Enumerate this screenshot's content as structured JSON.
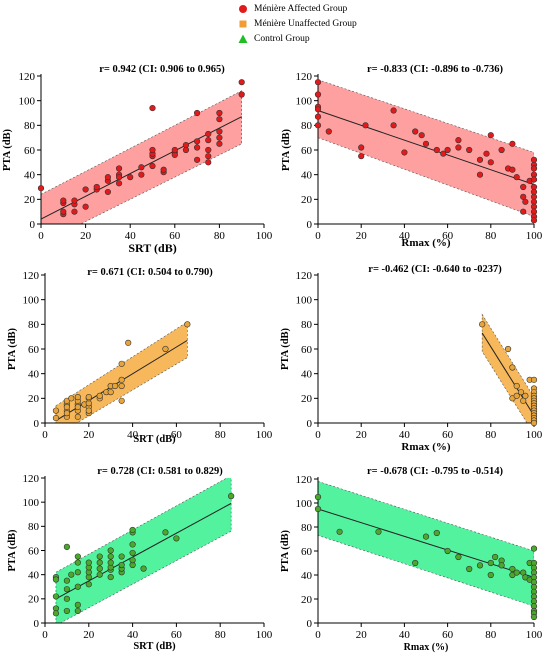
{
  "legend": {
    "items": [
      {
        "label": "Ménière Affected Group",
        "color": "#e31a1c",
        "shape": "circle-icon"
      },
      {
        "label": "Ménière Unaffected Group",
        "color": "#f39c34",
        "shape": "square-icon"
      },
      {
        "label": "Control Group",
        "color": "#1fbf24",
        "shape": "triangle-icon"
      }
    ]
  },
  "chart_data": [
    {
      "type": "scatter",
      "group": "Ménière Affected Group",
      "title": "r= 0.942 (CI: 0.906 to 0.965)",
      "xlabel": "SRT (dB)",
      "ylabel": "PTA (dB)",
      "xlim": [
        0,
        100
      ],
      "ylim": [
        0,
        120
      ],
      "xticks": [
        0,
        20,
        40,
        60,
        80,
        100
      ],
      "yticks": [
        0,
        20,
        40,
        60,
        80,
        100,
        120
      ],
      "point_color": "#e31a1c",
      "band_color": "#ff8f8f",
      "fit": {
        "x": [
          0,
          90
        ],
        "y": [
          4,
          87
        ]
      },
      "band": {
        "x": [
          0,
          90
        ],
        "upper": [
          24,
          108
        ],
        "lower": [
          -16,
          65
        ]
      },
      "points": [
        [
          0,
          29
        ],
        [
          10,
          8
        ],
        [
          10,
          10
        ],
        [
          10,
          17
        ],
        [
          10,
          19
        ],
        [
          15,
          10
        ],
        [
          15,
          16
        ],
        [
          15,
          19
        ],
        [
          20,
          28
        ],
        [
          20,
          14
        ],
        [
          25,
          28
        ],
        [
          25,
          30
        ],
        [
          30,
          35
        ],
        [
          30,
          38
        ],
        [
          30,
          26
        ],
        [
          35,
          40
        ],
        [
          35,
          45
        ],
        [
          35,
          33
        ],
        [
          35,
          38
        ],
        [
          40,
          38
        ],
        [
          45,
          40
        ],
        [
          45,
          46
        ],
        [
          50,
          47
        ],
        [
          50,
          55
        ],
        [
          50,
          57
        ],
        [
          50,
          60
        ],
        [
          50,
          94
        ],
        [
          55,
          42
        ],
        [
          55,
          44
        ],
        [
          60,
          58
        ],
        [
          60,
          56
        ],
        [
          60,
          60
        ],
        [
          65,
          60
        ],
        [
          65,
          64
        ],
        [
          70,
          52
        ],
        [
          70,
          62
        ],
        [
          70,
          67
        ],
        [
          70,
          90
        ],
        [
          75,
          55
        ],
        [
          75,
          60
        ],
        [
          75,
          68
        ],
        [
          75,
          73
        ],
        [
          75,
          50
        ],
        [
          80,
          65
        ],
        [
          80,
          70
        ],
        [
          80,
          75
        ],
        [
          80,
          85
        ],
        [
          80,
          90
        ],
        [
          90,
          105
        ],
        [
          90,
          115
        ]
      ]
    },
    {
      "type": "scatter",
      "group": "Ménière Affected Group",
      "title": "r= -0.833 (CI: -0.896 to -0.736)",
      "xlabel": "Rmax (%)",
      "ylabel": "PTA (dB)",
      "xlim": [
        0,
        100
      ],
      "ylim": [
        0,
        120
      ],
      "xticks": [
        0,
        20,
        40,
        60,
        80,
        100
      ],
      "yticks": [
        0,
        20,
        40,
        60,
        80,
        100,
        120
      ],
      "point_color": "#e31a1c",
      "band_color": "#ff8f8f",
      "fit": {
        "x": [
          0,
          100
        ],
        "y": [
          92,
          32
        ]
      },
      "band": {
        "x": [
          0,
          100
        ],
        "upper": [
          117,
          58
        ],
        "lower": [
          70,
          6
        ]
      },
      "points": [
        [
          0,
          115
        ],
        [
          0,
          105
        ],
        [
          0,
          95
        ],
        [
          0,
          87
        ],
        [
          0,
          80
        ],
        [
          0,
          93
        ],
        [
          5,
          75
        ],
        [
          20,
          55
        ],
        [
          20,
          62
        ],
        [
          22,
          80
        ],
        [
          35,
          92
        ],
        [
          35,
          80
        ],
        [
          40,
          58
        ],
        [
          45,
          75
        ],
        [
          48,
          72
        ],
        [
          50,
          65
        ],
        [
          55,
          60
        ],
        [
          58,
          57
        ],
        [
          60,
          60
        ],
        [
          65,
          62
        ],
        [
          65,
          68
        ],
        [
          70,
          60
        ],
        [
          75,
          52
        ],
        [
          75,
          40
        ],
        [
          78,
          57
        ],
        [
          80,
          50
        ],
        [
          80,
          72
        ],
        [
          85,
          60
        ],
        [
          88,
          45
        ],
        [
          90,
          44
        ],
        [
          90,
          65
        ],
        [
          92,
          38
        ],
        [
          95,
          30
        ],
        [
          95,
          10
        ],
        [
          95,
          22
        ],
        [
          96,
          18
        ],
        [
          98,
          35
        ],
        [
          100,
          48
        ],
        [
          100,
          52
        ],
        [
          100,
          45
        ],
        [
          100,
          40
        ],
        [
          100,
          36
        ],
        [
          100,
          30
        ],
        [
          100,
          26
        ],
        [
          100,
          22
        ],
        [
          100,
          18
        ],
        [
          100,
          14
        ],
        [
          100,
          10
        ],
        [
          100,
          6
        ],
        [
          100,
          3
        ]
      ]
    },
    {
      "type": "scatter",
      "group": "Ménière Unaffected Group",
      "title": "r= 0.671  (CI: 0.504 to 0.790)",
      "xlabel": "SRT (dB)",
      "ylabel": "PTA (dB)",
      "xlim": [
        0,
        100
      ],
      "ylim": [
        0,
        120
      ],
      "xticks": [
        0,
        20,
        40,
        60,
        80,
        100
      ],
      "yticks": [
        0,
        20,
        40,
        60,
        80,
        100,
        120
      ],
      "point_color": "#e7a43a",
      "band_color": "#f4ac3e",
      "fit": {
        "x": [
          5,
          65
        ],
        "y": [
          2,
          67
        ]
      },
      "band": {
        "x": [
          5,
          65
        ],
        "upper": [
          14,
          82
        ],
        "lower": [
          -10,
          53
        ]
      },
      "points": [
        [
          5,
          10
        ],
        [
          5,
          4
        ],
        [
          10,
          5
        ],
        [
          10,
          10
        ],
        [
          10,
          15
        ],
        [
          10,
          8
        ],
        [
          10,
          18
        ],
        [
          10,
          13
        ],
        [
          12,
          20
        ],
        [
          15,
          5
        ],
        [
          15,
          10
        ],
        [
          15,
          15
        ],
        [
          15,
          18
        ],
        [
          15,
          21
        ],
        [
          15,
          13
        ],
        [
          18,
          15
        ],
        [
          20,
          8
        ],
        [
          20,
          13
        ],
        [
          20,
          16
        ],
        [
          20,
          20
        ],
        [
          20,
          21
        ],
        [
          20,
          10
        ],
        [
          25,
          20
        ],
        [
          25,
          22
        ],
        [
          28,
          25
        ],
        [
          30,
          25
        ],
        [
          30,
          30
        ],
        [
          32,
          30
        ],
        [
          35,
          18
        ],
        [
          35,
          48
        ],
        [
          35,
          30
        ],
        [
          35,
          35
        ],
        [
          38,
          65
        ],
        [
          55,
          60
        ],
        [
          65,
          80
        ]
      ]
    },
    {
      "type": "scatter",
      "group": "Ménière Unaffected Group",
      "title": "r= -0.462 (CI: -0.640 to -0237)",
      "xlabel": "Rmax (%)",
      "ylabel": "PTA (dB)",
      "xlim": [
        0,
        100
      ],
      "ylim": [
        0,
        120
      ],
      "xticks": [
        0,
        20,
        40,
        60,
        80,
        100
      ],
      "yticks": [
        0,
        20,
        40,
        60,
        80,
        100,
        120
      ],
      "point_color": "#e7a43a",
      "band_color": "#f4ac3e",
      "fit": {
        "x": [
          76,
          100
        ],
        "y": [
          73,
          6
        ]
      },
      "band": {
        "x": [
          76,
          100
        ],
        "upper": [
          88,
          21
        ],
        "lower": [
          58,
          -9
        ]
      },
      "points": [
        [
          76,
          80
        ],
        [
          88,
          60
        ],
        [
          90,
          45
        ],
        [
          90,
          20
        ],
        [
          92,
          30
        ],
        [
          92,
          22
        ],
        [
          94,
          25
        ],
        [
          95,
          18
        ],
        [
          96,
          22
        ],
        [
          98,
          35
        ],
        [
          100,
          35
        ],
        [
          100,
          28
        ],
        [
          100,
          25
        ],
        [
          100,
          22
        ],
        [
          100,
          20
        ],
        [
          100,
          18
        ],
        [
          100,
          16
        ],
        [
          100,
          14
        ],
        [
          100,
          12
        ],
        [
          100,
          10
        ],
        [
          100,
          8
        ],
        [
          100,
          6
        ],
        [
          100,
          4
        ],
        [
          100,
          2
        ],
        [
          100,
          0
        ]
      ]
    },
    {
      "type": "scatter",
      "group": "Control Group",
      "title": "r= 0.728 (CI: 0.581 to 0.829)",
      "xlabel": "SRT (dB)",
      "ylabel": "PTA (dB)",
      "xlim": [
        0,
        100
      ],
      "ylim": [
        0,
        120
      ],
      "xticks": [
        0,
        20,
        40,
        60,
        80,
        100
      ],
      "yticks": [
        0,
        20,
        40,
        60,
        80,
        100,
        120
      ],
      "point_color": "#4aa82a",
      "band_color": "#35f08e",
      "fit": {
        "x": [
          5,
          85
        ],
        "y": [
          20,
          99
        ]
      },
      "band": {
        "x": [
          5,
          85
        ],
        "upper": [
          42,
          122
        ],
        "lower": [
          -2,
          76
        ]
      },
      "points": [
        [
          5,
          38
        ],
        [
          5,
          36
        ],
        [
          5,
          22
        ],
        [
          5,
          12
        ],
        [
          5,
          8
        ],
        [
          10,
          10
        ],
        [
          10,
          20
        ],
        [
          10,
          28
        ],
        [
          10,
          35
        ],
        [
          10,
          63
        ],
        [
          12,
          40
        ],
        [
          15,
          10
        ],
        [
          15,
          15
        ],
        [
          15,
          30
        ],
        [
          15,
          42
        ],
        [
          15,
          50
        ],
        [
          15,
          55
        ],
        [
          20,
          32
        ],
        [
          20,
          38
        ],
        [
          20,
          42
        ],
        [
          20,
          46
        ],
        [
          20,
          50
        ],
        [
          25,
          40
        ],
        [
          25,
          45
        ],
        [
          25,
          50
        ],
        [
          25,
          55
        ],
        [
          30,
          38
        ],
        [
          30,
          44
        ],
        [
          30,
          46
        ],
        [
          30,
          50
        ],
        [
          30,
          55
        ],
        [
          30,
          60
        ],
        [
          35,
          42
        ],
        [
          35,
          45
        ],
        [
          35,
          48
        ],
        [
          35,
          55
        ],
        [
          40,
          48
        ],
        [
          40,
          52
        ],
        [
          40,
          58
        ],
        [
          40,
          65
        ],
        [
          40,
          75
        ],
        [
          40,
          77
        ],
        [
          45,
          45
        ],
        [
          55,
          75
        ],
        [
          60,
          70
        ],
        [
          85,
          105
        ]
      ]
    },
    {
      "type": "scatter",
      "group": "Control Group",
      "title": "r= -0.678 (CI: -0.795 to -0.514)",
      "xlabel": "Rmax (%)",
      "ylabel": "PTA (dB)",
      "xlim": [
        0,
        100
      ],
      "ylim": [
        0,
        120
      ],
      "xticks": [
        0,
        20,
        40,
        60,
        80,
        100
      ],
      "yticks": [
        0,
        20,
        40,
        60,
        80,
        100,
        120
      ],
      "point_color": "#4aa82a",
      "band_color": "#35f08e",
      "fit": {
        "x": [
          0,
          100
        ],
        "y": [
          95,
          38
        ]
      },
      "band": {
        "x": [
          0,
          100
        ],
        "upper": [
          118,
          60
        ],
        "lower": [
          73,
          14
        ]
      },
      "points": [
        [
          0,
          105
        ],
        [
          0,
          95
        ],
        [
          10,
          76
        ],
        [
          28,
          76
        ],
        [
          45,
          50
        ],
        [
          50,
          72
        ],
        [
          55,
          75
        ],
        [
          60,
          60
        ],
        [
          65,
          55
        ],
        [
          70,
          45
        ],
        [
          75,
          48
        ],
        [
          80,
          40
        ],
        [
          80,
          50
        ],
        [
          82,
          55
        ],
        [
          85,
          52
        ],
        [
          85,
          48
        ],
        [
          90,
          45
        ],
        [
          90,
          40
        ],
        [
          92,
          42
        ],
        [
          95,
          42
        ],
        [
          96,
          38
        ],
        [
          98,
          50
        ],
        [
          98,
          36
        ],
        [
          100,
          62
        ],
        [
          100,
          50
        ],
        [
          100,
          46
        ],
        [
          100,
          42
        ],
        [
          100,
          38
        ],
        [
          100,
          34
        ],
        [
          100,
          30
        ],
        [
          100,
          26
        ],
        [
          100,
          22
        ],
        [
          100,
          18
        ],
        [
          100,
          14
        ],
        [
          100,
          10
        ],
        [
          100,
          8
        ],
        [
          100,
          5
        ]
      ]
    }
  ]
}
